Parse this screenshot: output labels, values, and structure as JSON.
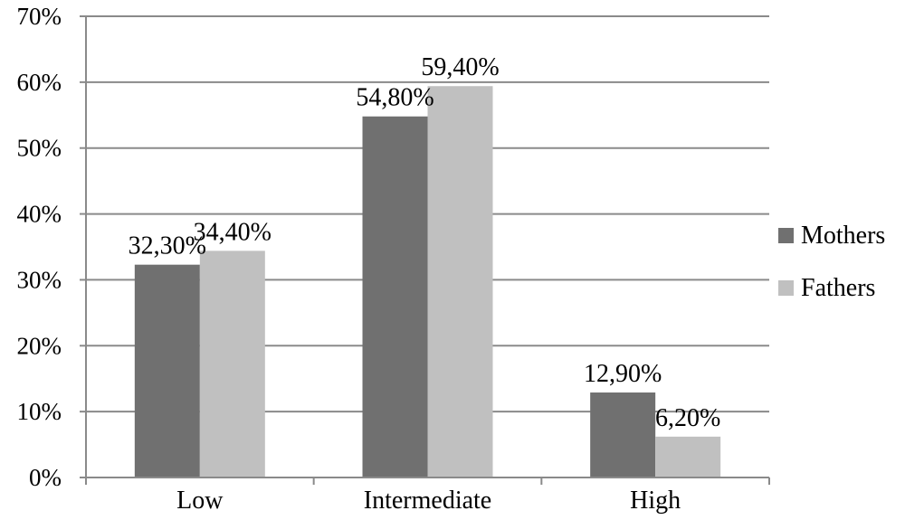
{
  "chart_data": {
    "type": "bar",
    "categories": [
      "Low",
      "Intermediate",
      "High"
    ],
    "series": [
      {
        "name": "Mothers",
        "values": [
          32.3,
          54.8,
          12.9
        ],
        "labels": [
          "32,30%",
          "54,80%",
          "12,90%"
        ],
        "color": "#707070"
      },
      {
        "name": "Fathers",
        "values": [
          34.4,
          59.4,
          6.2
        ],
        "labels": [
          "34,40%",
          "59,40%",
          "6,20%"
        ],
        "color": "#c0c0c0"
      }
    ],
    "yticks": [
      "0%",
      "10%",
      "20%",
      "30%",
      "40%",
      "50%",
      "60%",
      "70%"
    ],
    "ylim": [
      0,
      70
    ],
    "grid": true,
    "legend_position": "right"
  }
}
